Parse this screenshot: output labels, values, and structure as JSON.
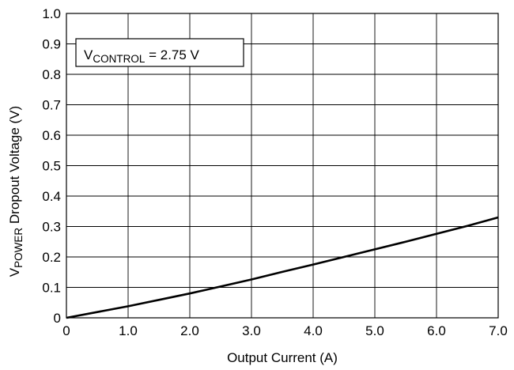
{
  "chart_data": {
    "type": "line",
    "title": "",
    "xlabel": "Output Current (A)",
    "ylabel": {
      "main": "V",
      "sub": "POWER",
      "rest": " Dropout Voltage (V)"
    },
    "xlim": [
      0,
      7
    ],
    "ylim": [
      0,
      1
    ],
    "grid": true,
    "x_ticks": [
      "0",
      "1.0",
      "2.0",
      "3.0",
      "4.0",
      "5.0",
      "6.0",
      "7.0"
    ],
    "y_ticks": [
      "0",
      "0.1",
      "0.2",
      "0.3",
      "0.4",
      "0.5",
      "0.6",
      "0.7",
      "0.8",
      "0.9",
      "1.0"
    ],
    "annotation": {
      "main": "V",
      "sub": "CONTROL",
      "rest": " = 2.75 V"
    },
    "series": [
      {
        "color": "#000000",
        "x": [
          0,
          0.5,
          1.0,
          1.5,
          2.0,
          2.5,
          3.0,
          3.5,
          4.0,
          4.5,
          5.0,
          5.5,
          6.0,
          6.5,
          7.0
        ],
        "y": [
          0,
          0.019,
          0.038,
          0.059,
          0.08,
          0.103,
          0.126,
          0.151,
          0.175,
          0.2,
          0.225,
          0.25,
          0.276,
          0.302,
          0.33
        ]
      }
    ]
  }
}
